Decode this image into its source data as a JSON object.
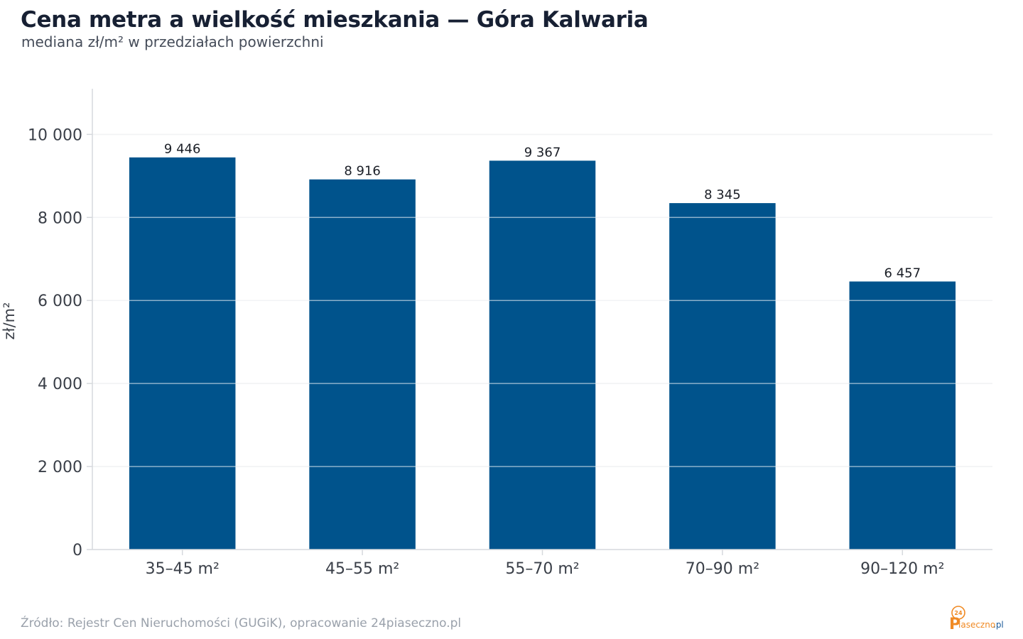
{
  "header": {
    "title": "Cena metra a wielkość mieszkania — Góra Kalwaria",
    "subtitle": "mediana zł/m² w przedziałach powierzchni"
  },
  "footer": {
    "source": "Źródło: Rejestr Cen Nieruchomości (GUGiK), opracowanie 24piaseczno.pl",
    "brand_badge": "24",
    "brand_p": "P",
    "brand_name": "iaseczno",
    "brand_tld": ".pl"
  },
  "colors": {
    "bar": "#00538c",
    "grid": "#e3e5e8",
    "axis": "#d6d9dd",
    "tick_text": "#3a3f48",
    "label_text": "#1b1f27",
    "brand_orange": "#f08a24",
    "brand_blue": "#1d5b99"
  },
  "chart_data": {
    "type": "bar",
    "title": "Cena metra a wielkość mieszkania — Góra Kalwaria",
    "subtitle": "mediana zł/m² w przedziałach powierzchni",
    "xlabel": "",
    "ylabel": "zł/m²",
    "categories": [
      "35–45 m²",
      "45–55 m²",
      "55–70 m²",
      "70–90 m²",
      "90–120 m²"
    ],
    "values": [
      9446,
      8916,
      9367,
      8345,
      6457
    ],
    "value_labels": [
      "9 446",
      "8 916",
      "9 367",
      "8 345",
      "6 457"
    ],
    "ylim": [
      0,
      11100
    ],
    "yticks": [
      0,
      2000,
      4000,
      6000,
      8000,
      10000
    ],
    "ytick_labels": [
      "0",
      "2 000",
      "4 000",
      "6 000",
      "8 000",
      "10 000"
    ],
    "grid": true,
    "legend": "none"
  }
}
